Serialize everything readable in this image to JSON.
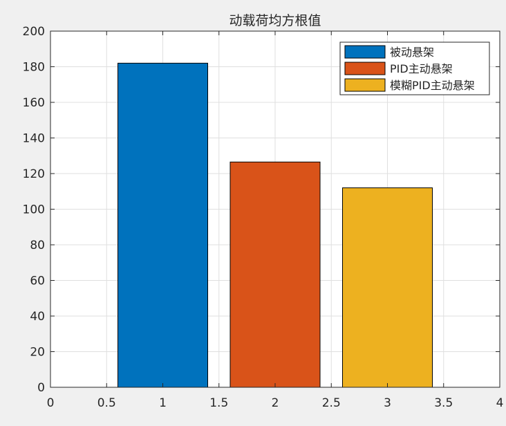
{
  "chart_data": {
    "type": "bar",
    "title": "动载荷均方根值",
    "xlabel": "",
    "ylabel": "",
    "xlim": [
      0,
      4
    ],
    "ylim": [
      0,
      200
    ],
    "xticks": [
      "0",
      "0.5",
      "1",
      "1.5",
      "2",
      "2.5",
      "3",
      "3.5",
      "4"
    ],
    "yticks": [
      "0",
      "20",
      "40",
      "60",
      "80",
      "100",
      "120",
      "140",
      "160",
      "180",
      "200"
    ],
    "grid": true,
    "legend_position": "top-right",
    "bar_width": 0.8,
    "series": [
      {
        "name": "被动悬架",
        "x": 1,
        "value": 182,
        "color": "#0072BD"
      },
      {
        "name": "PID主动悬架",
        "x": 2,
        "value": 126.5,
        "color": "#D95319"
      },
      {
        "name": "模糊PID主动悬架",
        "x": 3,
        "value": 112,
        "color": "#EDB120"
      }
    ]
  }
}
